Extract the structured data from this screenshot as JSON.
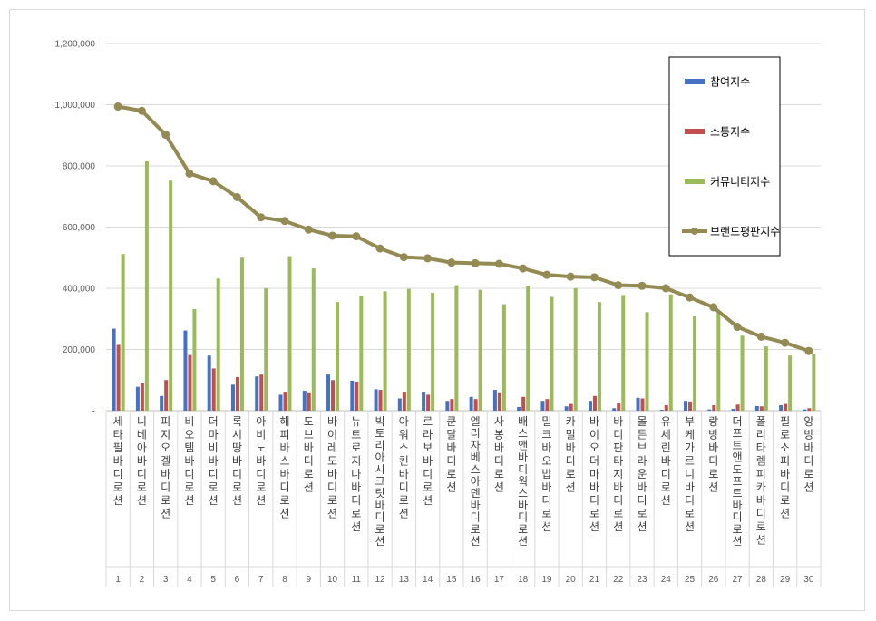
{
  "chart_data": {
    "type": "bar",
    "categories": [
      "세타필 바디로션",
      "니베아 바디로션",
      "피지오겔 바디로션",
      "비오템 바디로션",
      "더마비 바디로션",
      "록시땅 바디로션",
      "아비노 바디로션",
      "해피바스 바디로션",
      "도브 바디로션",
      "바이레도 바디로션",
      "뉴트로지나 바디로션",
      "빅토리아시크릿 바디로션",
      "아워스킨 바디로션",
      "르라보 바디로션",
      "쿤달 바디로션",
      "엘리자베스아덴 바디로션",
      "사봉 바디로션",
      "배스앤바디웍스 바디로션",
      "밀크바오밥 바디로션",
      "카밀 바디로션",
      "바이오더마 바디로션",
      "바디판타지 바디로션",
      "몰튼브라운 바디로션",
      "유세린 바디로션",
      "부케가르니 바디로션",
      "랑방 바디로션",
      "더프트앤도프트 바디로션",
      "폴리타렘피카 바디로션",
      "필로소피 바디로션",
      "앙방 바디로션"
    ],
    "category_display": [
      "세타필바디로션",
      "니베아바디로션",
      "피지오겔바디로션",
      "비오템바디로션",
      "더마비바디로션",
      "록시땅바디로션",
      "아비노바디로션",
      "해피바스바디로션",
      "도브바디로션",
      "바이레도바디로션",
      "뉴트로지나바디로션",
      "빅토리아시크릿바디로션",
      "아워스킨바디로션",
      "르라보바디로션",
      "쿤달바디로션",
      "엘리자베스아덴바디로션",
      "사봉바디로션",
      "배스앤바디웍스바디로션",
      "밀크바오밥바디로션",
      "카밀바디로션",
      "바이오더마바디로션",
      "바디판타지바디로션",
      "몰튼브라운바디로션",
      "유세린바디로션",
      "부케가르니바디로션",
      "랑방바디로션",
      "더프트앤도프트바디로션",
      "폴리타렘피카바디로션",
      "필로소피바디로션",
      "앙방바디로션"
    ],
    "ranks": [
      "1",
      "2",
      "3",
      "4",
      "5",
      "6",
      "7",
      "8",
      "9",
      "10",
      "11",
      "12",
      "13",
      "14",
      "15",
      "16",
      "17",
      "18",
      "19",
      "20",
      "21",
      "22",
      "23",
      "24",
      "25",
      "26",
      "27",
      "28",
      "29",
      "30"
    ],
    "series": [
      {
        "name": "참여지수",
        "kind": "bar",
        "color": "#4472C4",
        "values": [
          268000,
          78000,
          48000,
          262000,
          180000,
          85000,
          112000,
          52000,
          65000,
          118000,
          98000,
          70000,
          40000,
          62000,
          32000,
          45000,
          68000,
          12000,
          32000,
          14000,
          32000,
          8000,
          42000,
          3000,
          32000,
          4000,
          6000,
          15000,
          18000,
          4000
        ]
      },
      {
        "name": "소통지수",
        "kind": "bar",
        "color": "#C0504D",
        "values": [
          215000,
          90000,
          100000,
          182000,
          138000,
          110000,
          118000,
          62000,
          60000,
          100000,
          95000,
          68000,
          62000,
          52000,
          38000,
          38000,
          60000,
          45000,
          38000,
          22000,
          48000,
          25000,
          40000,
          18000,
          30000,
          18000,
          20000,
          14000,
          22000,
          8000
        ]
      },
      {
        "name": "커뮤니티지수",
        "kind": "bar",
        "color": "#9BBB59",
        "values": [
          512000,
          815000,
          752000,
          332000,
          432000,
          500000,
          400000,
          505000,
          465000,
          355000,
          375000,
          390000,
          398000,
          385000,
          410000,
          395000,
          348000,
          408000,
          372000,
          400000,
          355000,
          378000,
          322000,
          380000,
          308000,
          325000,
          245000,
          210000,
          180000,
          185000
        ]
      },
      {
        "name": "브랜드평판지수",
        "kind": "line",
        "color": "#948A54",
        "values": [
          994000,
          980000,
          902000,
          775000,
          750000,
          698000,
          632000,
          620000,
          592000,
          572000,
          570000,
          530000,
          502000,
          498000,
          484000,
          482000,
          480000,
          465000,
          444000,
          438000,
          436000,
          410000,
          408000,
          400000,
          370000,
          338000,
          274000,
          242000,
          222000,
          195000
        ]
      }
    ],
    "y_ticks": [
      "-",
      "200,000",
      "400,000",
      "600,000",
      "800,000",
      "1,000,000",
      "1,200,000"
    ],
    "ylim": [
      0,
      1200000
    ],
    "grid": true,
    "legend_position": "top-right"
  }
}
